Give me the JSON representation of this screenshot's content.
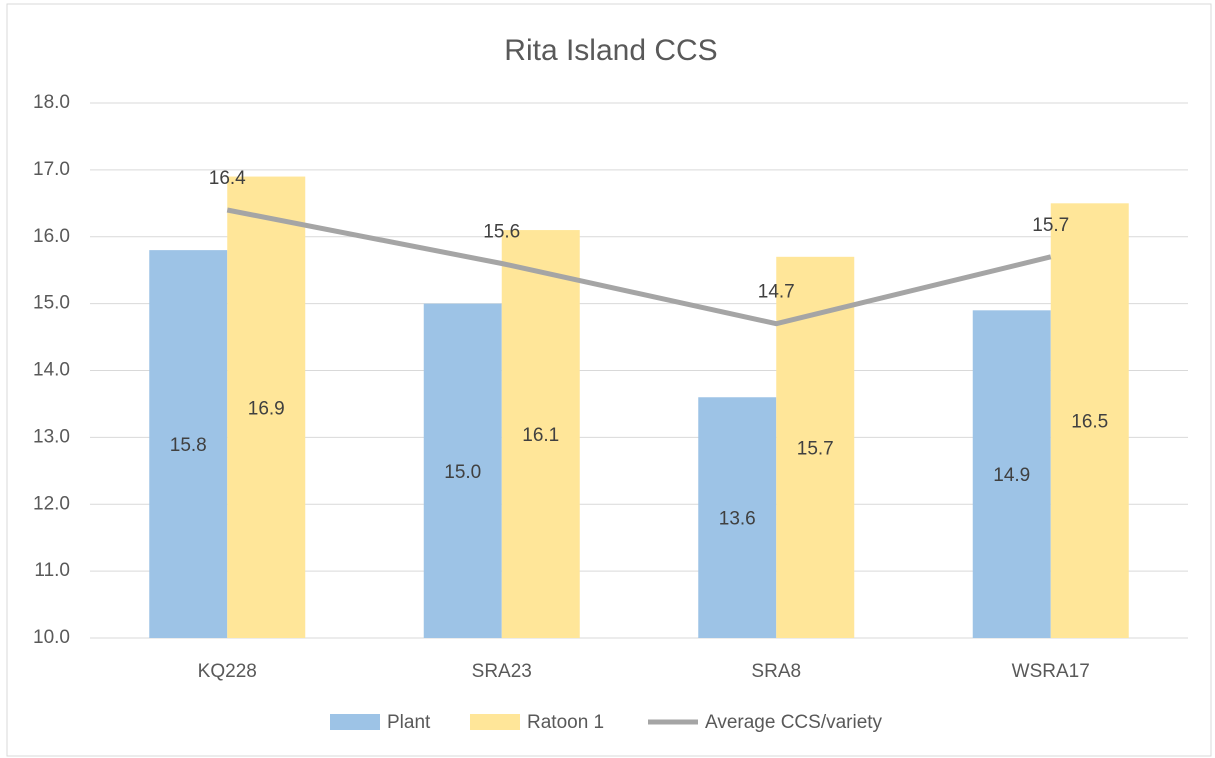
{
  "chart_data": {
    "type": "bar",
    "title": "Rita Island CCS",
    "categories": [
      "KQ228",
      "SRA23",
      "SRA8",
      "WSRA17"
    ],
    "series": [
      {
        "name": "Plant",
        "type": "bar",
        "color": "#9dc3e6",
        "values": [
          15.8,
          15,
          13.6,
          14.9
        ],
        "value_labels": [
          "15.8",
          "15.0",
          "13.6",
          "14.9"
        ]
      },
      {
        "name": "Ratoon 1",
        "type": "bar",
        "color": "#ffe699",
        "values": [
          16.9,
          16.1,
          15.7,
          16.5
        ],
        "value_labels": [
          "16.9",
          "16.1",
          "15.7",
          "16.5"
        ]
      },
      {
        "name": "Average CCS/variety",
        "type": "line",
        "color": "#a5a5a5",
        "values": [
          16.4,
          15.6,
          14.7,
          15.7
        ],
        "value_labels": [
          "16.4",
          "15.6",
          "14.7",
          "15.7"
        ]
      }
    ],
    "ylim": [
      10,
      18
    ],
    "yticks": [
      {
        "value": 10,
        "label": "10.0"
      },
      {
        "value": 11,
        "label": "11.0"
      },
      {
        "value": 12,
        "label": "12.0"
      },
      {
        "value": 13,
        "label": "13.0"
      },
      {
        "value": 14,
        "label": "14.0"
      },
      {
        "value": 15,
        "label": "15.0"
      },
      {
        "value": 16,
        "label": "16.0"
      },
      {
        "value": 17,
        "label": "17.0"
      },
      {
        "value": 18,
        "label": "18.0"
      }
    ],
    "grid": true,
    "legend": "bottom"
  }
}
